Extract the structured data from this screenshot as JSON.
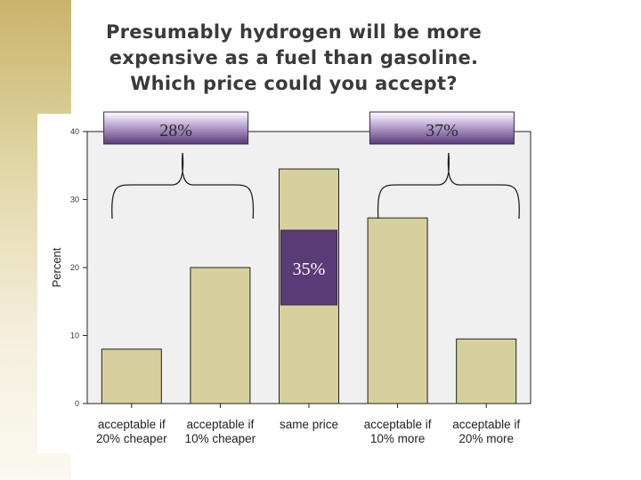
{
  "title_lines": [
    "Presumably hydrogen will be more",
    "expensive as a fuel than gasoline.",
    "Which price could you accept?"
  ],
  "chart_data": {
    "type": "bar",
    "categories": [
      [
        "acceptable if",
        "20% cheaper"
      ],
      [
        "acceptable if",
        "10% cheaper"
      ],
      [
        "same price"
      ],
      [
        "acceptable if",
        "10% more"
      ],
      [
        "acceptable if",
        "20% more"
      ]
    ],
    "values": [
      8,
      20,
      34.5,
      27.3,
      9.5
    ],
    "ylabel": "Percent",
    "ylim": [
      0,
      40
    ],
    "yticks": [
      "0",
      "10",
      "20",
      "30",
      "40"
    ],
    "bar_color": "#d6d09c",
    "plot_bg": "#f0f0f0",
    "annotations": [
      {
        "text": "28%",
        "covers": [
          0,
          1
        ]
      },
      {
        "text": "35%",
        "covers": [
          2
        ]
      },
      {
        "text": "37%",
        "covers": [
          3,
          4
        ]
      }
    ],
    "annotation_color": "#5b3a78"
  }
}
